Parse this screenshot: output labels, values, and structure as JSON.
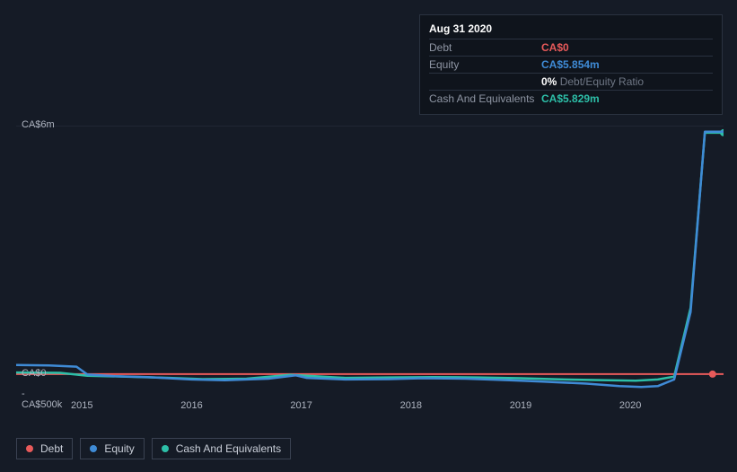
{
  "tooltip": {
    "date": "Aug 31 2020",
    "rows": {
      "debt": {
        "label": "Debt",
        "value": "CA$0"
      },
      "equity": {
        "label": "Equity",
        "value": "CA$5.854m"
      },
      "ratio": {
        "pct": "0%",
        "label": "Debt/Equity Ratio"
      },
      "cash": {
        "label": "Cash And Equivalents",
        "value": "CA$5.829m"
      }
    }
  },
  "chart": {
    "type": "line",
    "background_color": "#151b26",
    "grid_color": "#2a3240",
    "tick_font_size": 11,
    "tick_color": "#aeb4c0",
    "y_axis": {
      "min": -500000,
      "max": 6000000,
      "ticks": [
        {
          "value": 6000000,
          "label": "CA$6m"
        },
        {
          "value": 0,
          "label": "CA$0"
        },
        {
          "value": -500000,
          "label": "-CA$500k"
        }
      ]
    },
    "x_axis": {
      "min": 2014.4,
      "max": 2020.85,
      "ticks": [
        {
          "value": 2015,
          "label": "2015"
        },
        {
          "value": 2016,
          "label": "2016"
        },
        {
          "value": 2017,
          "label": "2017"
        },
        {
          "value": 2018,
          "label": "2018"
        },
        {
          "value": 2019,
          "label": "2019"
        },
        {
          "value": 2020,
          "label": "2020"
        }
      ]
    },
    "series": {
      "debt": {
        "label": "Debt",
        "color": "#e85a5a",
        "line_width": 2,
        "marker": {
          "x": 2020.75,
          "y": 0
        },
        "points": [
          [
            2014.4,
            0
          ],
          [
            2015,
            0
          ],
          [
            2016,
            0
          ],
          [
            2017,
            0
          ],
          [
            2018,
            0
          ],
          [
            2019,
            0
          ],
          [
            2020,
            0
          ],
          [
            2020.85,
            0
          ]
        ]
      },
      "equity": {
        "label": "Equity",
        "color": "#3f8bd6",
        "line_width": 2.5,
        "points": [
          [
            2014.4,
            220000
          ],
          [
            2014.7,
            210000
          ],
          [
            2014.95,
            180000
          ],
          [
            2015.05,
            -10000
          ],
          [
            2015.3,
            -50000
          ],
          [
            2015.6,
            -70000
          ],
          [
            2016.0,
            -130000
          ],
          [
            2016.3,
            -150000
          ],
          [
            2016.7,
            -110000
          ],
          [
            2016.95,
            -30000
          ],
          [
            2017.05,
            -90000
          ],
          [
            2017.4,
            -130000
          ],
          [
            2017.8,
            -120000
          ],
          [
            2018.1,
            -100000
          ],
          [
            2018.5,
            -110000
          ],
          [
            2018.9,
            -150000
          ],
          [
            2019.2,
            -180000
          ],
          [
            2019.6,
            -230000
          ],
          [
            2019.9,
            -290000
          ],
          [
            2020.1,
            -310000
          ],
          [
            2020.25,
            -290000
          ],
          [
            2020.4,
            -130000
          ],
          [
            2020.55,
            1500000
          ],
          [
            2020.68,
            5854000
          ],
          [
            2020.85,
            5854000
          ]
        ]
      },
      "cash": {
        "label": "Cash And Equivalents",
        "color": "#2dbfa8",
        "line_width": 2.5,
        "marker": {
          "x": 2020.85,
          "y": 5829000
        },
        "points": [
          [
            2014.4,
            40000
          ],
          [
            2014.8,
            30000
          ],
          [
            2015.05,
            -40000
          ],
          [
            2015.4,
            -60000
          ],
          [
            2015.8,
            -90000
          ],
          [
            2016.1,
            -120000
          ],
          [
            2016.5,
            -110000
          ],
          [
            2016.9,
            -20000
          ],
          [
            2017.05,
            -40000
          ],
          [
            2017.4,
            -90000
          ],
          [
            2017.8,
            -80000
          ],
          [
            2018.2,
            -70000
          ],
          [
            2018.6,
            -80000
          ],
          [
            2019.0,
            -100000
          ],
          [
            2019.4,
            -130000
          ],
          [
            2019.8,
            -150000
          ],
          [
            2020.05,
            -160000
          ],
          [
            2020.25,
            -130000
          ],
          [
            2020.4,
            -60000
          ],
          [
            2020.55,
            1600000
          ],
          [
            2020.68,
            5829000
          ],
          [
            2020.85,
            5829000
          ]
        ]
      }
    }
  },
  "legend": {
    "debt": "Debt",
    "equity": "Equity",
    "cash": "Cash And Equivalents"
  }
}
